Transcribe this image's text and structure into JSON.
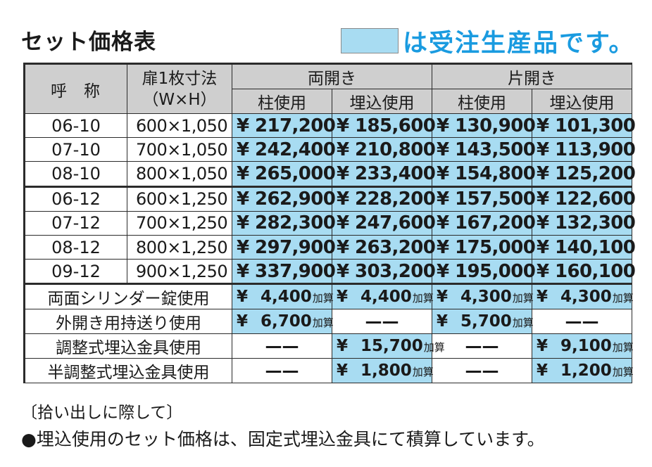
{
  "title": "セット価格表",
  "legend": {
    "text": "は受注生産品です。",
    "color": "#a8dcf2"
  },
  "table": {
    "headers": {
      "name": "呼称",
      "size_line1": "扉1枚寸法",
      "size_line2": "（W×H）",
      "group1": "両開き",
      "group2": "片開き",
      "sub": [
        "柱使用",
        "埋込使用",
        "柱使用",
        "埋込使用"
      ]
    },
    "rows": [
      {
        "name": "06-10",
        "size": "600×1,050",
        "prices": [
          "217,200",
          "185,600",
          "130,900",
          "101,300"
        ]
      },
      {
        "name": "07-10",
        "size": "700×1,050",
        "prices": [
          "242,400",
          "210,800",
          "143,500",
          "113,900"
        ]
      },
      {
        "name": "08-10",
        "size": "800×1,050",
        "prices": [
          "265,000",
          "233,400",
          "154,800",
          "125,200"
        ]
      },
      {
        "name": "06-12",
        "size": "600×1,250",
        "prices": [
          "262,900",
          "228,200",
          "157,500",
          "122,600"
        ]
      },
      {
        "name": "07-12",
        "size": "700×1,250",
        "prices": [
          "282,300",
          "247,600",
          "167,200",
          "132,300"
        ]
      },
      {
        "name": "08-12",
        "size": "800×1,250",
        "prices": [
          "297,900",
          "263,200",
          "175,000",
          "140,100"
        ]
      },
      {
        "name": "09-12",
        "size": "900×1,250",
        "prices": [
          "337,900",
          "303,200",
          "195,000",
          "160,100"
        ]
      }
    ],
    "options": [
      {
        "label": "両面シリンダー錠使用",
        "values": [
          "4,400",
          "4,400",
          "4,300",
          "4,300"
        ]
      },
      {
        "label": "外開き用持送り使用",
        "values": [
          "6,700",
          "—",
          "5,700",
          "—"
        ]
      },
      {
        "label": "調整式埋込金具使用",
        "values": [
          "—",
          "15,700",
          "—",
          "9,100"
        ]
      },
      {
        "label": "半調整式埋込金具使用",
        "values": [
          "—",
          "1,800",
          "—",
          "1,200"
        ]
      }
    ],
    "yen": "¥",
    "addon_suffix": "加算",
    "dash": "——"
  },
  "notes": {
    "heading": "〔拾い出しに際して〕",
    "body": "●埋込使用のセット価格は、固定式埋込金具にて積算しています。"
  }
}
